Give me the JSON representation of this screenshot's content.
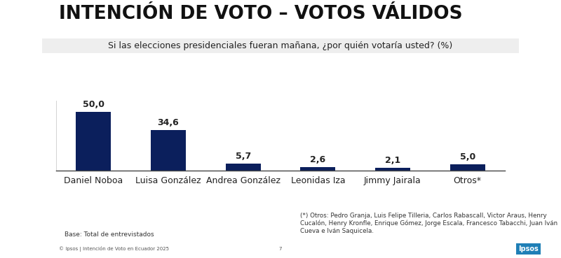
{
  "chart_data": {
    "type": "bar",
    "title": "INTENCIÓN DE VOTO – VOTOS VÁLIDOS",
    "subtitle": "Si las elecciones presidenciales fueran mañana, ¿por quién votaría usted? (%)",
    "categories": [
      "Daniel Noboa",
      "Luisa González",
      "Andrea González",
      "Leonidas Iza",
      "Jimmy Jairala",
      "Otros*"
    ],
    "values": [
      50.0,
      34.6,
      5.7,
      2.6,
      2.1,
      5.0
    ],
    "value_labels": [
      "50,0",
      "34,6",
      "5,7",
      "2,6",
      "2,1",
      "5,0"
    ],
    "color": "#0b1f5c",
    "ylim": [
      0,
      60
    ],
    "yticks": [],
    "grid": false,
    "data_labels": true,
    "tick_labels": "x"
  },
  "footer": {
    "note": "(*) Otros: Pedro Granja, Luis Felipe Tilleria, Carlos Rabascall, Victor Araus, Henry Cucalón, Henry Kronfle, Enrique Gómez, Jorge Escala, Francesco Tabacchi, Juan Iván Cueva e Iván Saquicela.",
    "base": "Base: Total de entrevistados",
    "copyright": "© Ipsos | Intención de Voto en Ecuador 2025",
    "page": "7",
    "logo": "Ipsos"
  }
}
